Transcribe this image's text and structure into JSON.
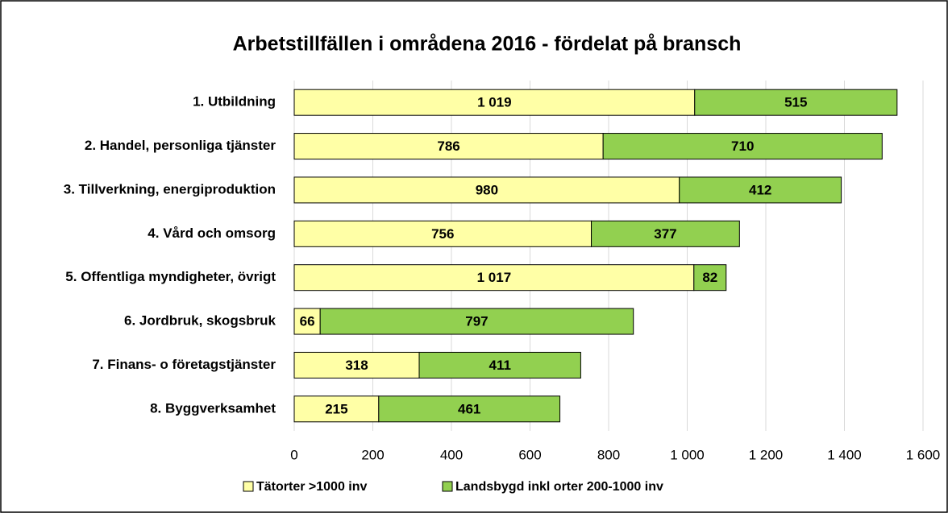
{
  "chart_data": {
    "type": "stacked-bar-horizontal",
    "title": "Arbetstillfällen i områdena 2016 - fördelat på bransch",
    "categories": [
      "1. Utbildning",
      "2. Handel, personliga tjänster",
      "3. Tillverkning, energiproduktion",
      "4. Vård och omsorg",
      "5. Offentliga myndigheter, övrigt",
      "6. Jordbruk, skogsbruk",
      "7. Finans- o företagstjänster",
      "8. Byggverksamhet"
    ],
    "series": [
      {
        "name": "Tätorter >1000 inv",
        "color": "#ffffa6",
        "values": [
          1019,
          786,
          980,
          756,
          1017,
          66,
          318,
          215
        ],
        "value_labels": [
          "1 019",
          "786",
          "980",
          "756",
          "1 017",
          "66",
          "318",
          "215"
        ]
      },
      {
        "name": "Landsbygd inkl orter 200-1000 inv",
        "color": "#92d050",
        "values": [
          515,
          710,
          412,
          377,
          82,
          797,
          411,
          461
        ],
        "value_labels": [
          "515",
          "710",
          "412",
          "377",
          "82",
          "797",
          "411",
          "461"
        ]
      }
    ],
    "xlim": [
      0,
      1600
    ],
    "xticks": [
      0,
      200,
      400,
      600,
      800,
      {
        "value": 1000,
        "label": "1 000"
      },
      {
        "value": 1200,
        "label": "1 200"
      },
      {
        "value": 1400,
        "label": "1 400"
      },
      {
        "value": 1600,
        "label": "1 600"
      }
    ],
    "grid": true,
    "legend": "bottom"
  }
}
